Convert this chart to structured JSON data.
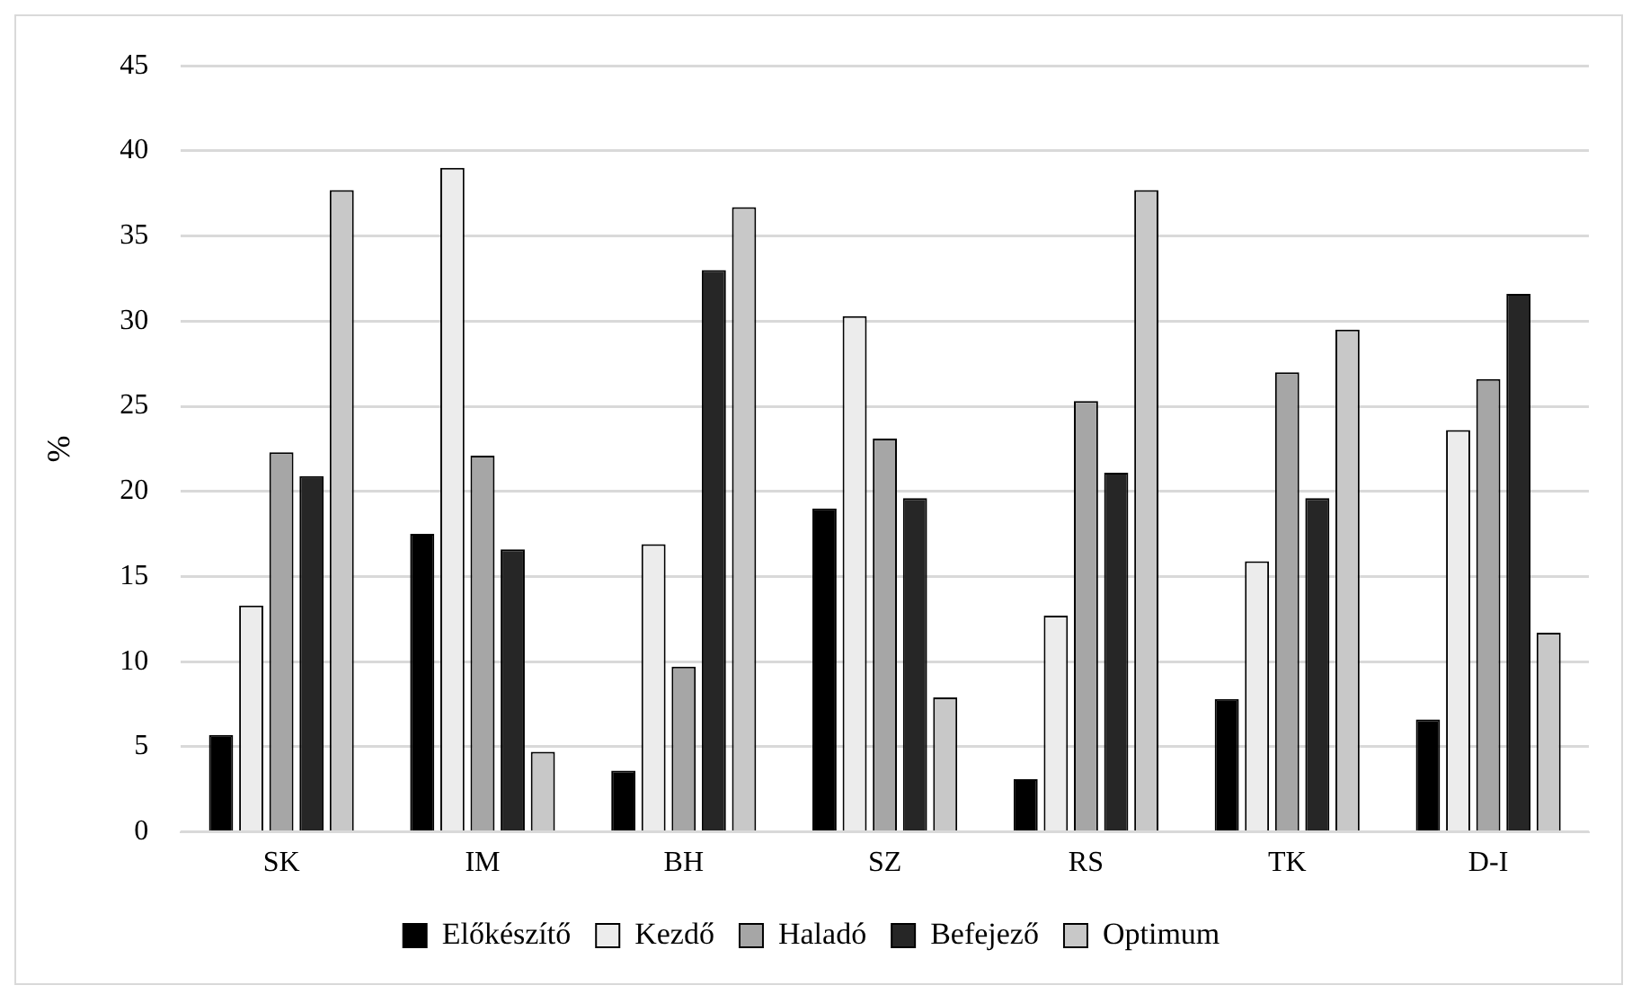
{
  "chart_data": {
    "type": "bar",
    "ylabel": "%",
    "categories": [
      "SK",
      "IM",
      "BH",
      "SZ",
      "RS",
      "TK",
      "D-I"
    ],
    "series": [
      {
        "name": "Előkészítő",
        "color": "#000000",
        "values": [
          5.7,
          17.5,
          3.6,
          19.0,
          3.1,
          7.8,
          6.6
        ]
      },
      {
        "name": "Kezdő",
        "color": "#ececec",
        "values": [
          13.3,
          39.0,
          16.9,
          30.3,
          12.7,
          15.9,
          23.6
        ]
      },
      {
        "name": "Haladó",
        "color": "#a6a6a6",
        "values": [
          22.3,
          22.1,
          9.7,
          23.1,
          25.3,
          27.0,
          26.6
        ]
      },
      {
        "name": "Befejező",
        "color": "#262626",
        "values": [
          20.9,
          16.6,
          33.0,
          19.6,
          21.1,
          19.6,
          31.6
        ]
      },
      {
        "name": "Optimum",
        "color": "#c8c8c8",
        "values": [
          37.7,
          4.7,
          36.7,
          7.9,
          37.7,
          29.5,
          11.7
        ]
      }
    ],
    "ylim": [
      0,
      45
    ],
    "yticks": [
      0,
      5,
      10,
      15,
      20,
      25,
      30,
      35,
      40,
      45
    ],
    "grid": "y",
    "legend": "bottom"
  }
}
